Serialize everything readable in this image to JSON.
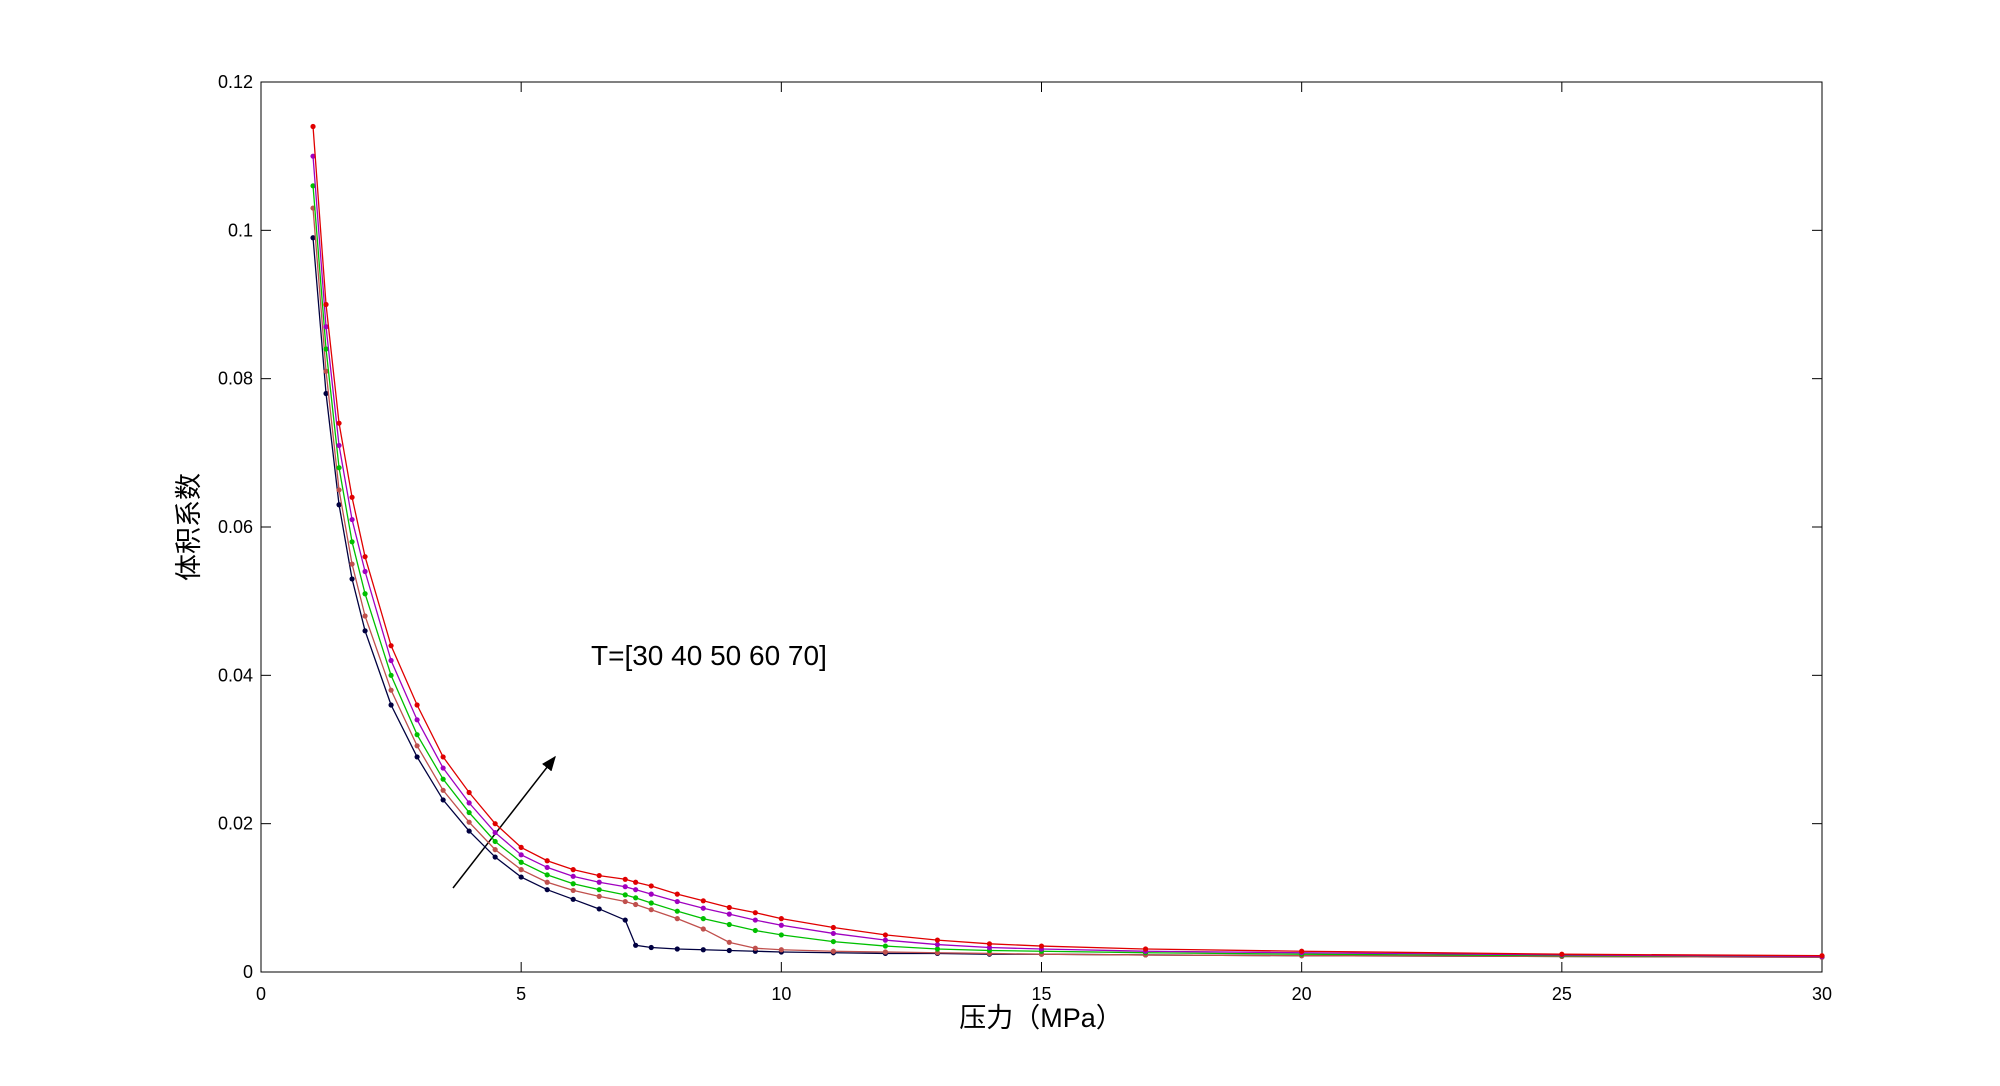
{
  "chart_data": {
    "type": "line",
    "xlabel": "压力（MPa）",
    "ylabel": "体积系数",
    "annotation": "T=[30 40 50 60 70]",
    "x": [
      1,
      1.25,
      1.5,
      1.75,
      2,
      2.5,
      3,
      3.5,
      4,
      4.5,
      5,
      5.5,
      6,
      6.5,
      7,
      7.2,
      7.5,
      8,
      8.5,
      9,
      9.5,
      10,
      11,
      12,
      13,
      14,
      15,
      17,
      20,
      25,
      30
    ],
    "series": [
      {
        "color": "#000040",
        "values": [
          0.099,
          0.078,
          0.063,
          0.053,
          0.046,
          0.036,
          0.029,
          0.0232,
          0.019,
          0.0155,
          0.0128,
          0.0111,
          0.0098,
          0.0085,
          0.007,
          0.0036,
          0.0033,
          0.0031,
          0.003,
          0.0029,
          0.0028,
          0.0027,
          0.0026,
          0.0025,
          0.0025,
          0.0024,
          0.0024,
          0.0023,
          0.0022,
          0.0021,
          0.002
        ]
      },
      {
        "color": "#c0504d",
        "values": [
          0.103,
          0.081,
          0.065,
          0.055,
          0.048,
          0.038,
          0.0305,
          0.0245,
          0.0202,
          0.0165,
          0.0138,
          0.0121,
          0.011,
          0.0102,
          0.0095,
          0.0091,
          0.0084,
          0.0072,
          0.0058,
          0.004,
          0.0032,
          0.003,
          0.0028,
          0.0027,
          0.0026,
          0.0025,
          0.0024,
          0.0023,
          0.0022,
          0.0021,
          0.002
        ]
      },
      {
        "color": "#00c000",
        "values": [
          0.106,
          0.084,
          0.068,
          0.058,
          0.051,
          0.04,
          0.032,
          0.026,
          0.0215,
          0.0176,
          0.0148,
          0.0131,
          0.0119,
          0.0111,
          0.0104,
          0.01,
          0.0093,
          0.0082,
          0.0072,
          0.0064,
          0.0056,
          0.005,
          0.0041,
          0.0035,
          0.0031,
          0.0029,
          0.0028,
          0.0026,
          0.0024,
          0.0022,
          0.0021
        ]
      },
      {
        "color": "#a000c0",
        "values": [
          0.11,
          0.087,
          0.071,
          0.061,
          0.054,
          0.042,
          0.034,
          0.0275,
          0.0228,
          0.0188,
          0.0158,
          0.0141,
          0.0129,
          0.0121,
          0.0115,
          0.0111,
          0.0105,
          0.0095,
          0.0086,
          0.0078,
          0.007,
          0.0063,
          0.0052,
          0.0043,
          0.0037,
          0.0033,
          0.0031,
          0.0028,
          0.0026,
          0.0023,
          0.0021
        ]
      },
      {
        "color": "#e00000",
        "values": [
          0.114,
          0.09,
          0.074,
          0.064,
          0.056,
          0.044,
          0.036,
          0.029,
          0.0242,
          0.02,
          0.0168,
          0.015,
          0.0138,
          0.013,
          0.0125,
          0.0121,
          0.0116,
          0.0105,
          0.0096,
          0.0087,
          0.008,
          0.0072,
          0.006,
          0.005,
          0.0043,
          0.0038,
          0.0035,
          0.0031,
          0.0028,
          0.0024,
          0.0022
        ]
      }
    ],
    "xlim": [
      0,
      30
    ],
    "xticks": [
      0,
      5,
      10,
      15,
      20,
      25,
      30
    ],
    "ylim": [
      0,
      0.12
    ],
    "yticks": [
      0,
      0.02,
      0.04,
      0.06,
      0.08,
      0.1,
      0.12
    ]
  }
}
